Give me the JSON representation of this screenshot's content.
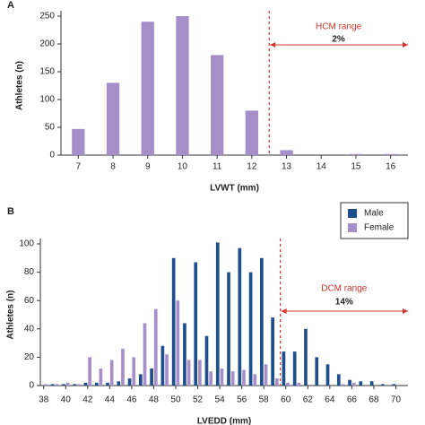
{
  "chart_data": [
    {
      "type": "bar",
      "panel": "A",
      "x_label": "LVWT (mm)",
      "y_label": "Athletes (n)",
      "x": [
        7,
        8,
        9,
        10,
        11,
        12,
        13,
        14,
        15,
        16
      ],
      "values": [
        47,
        130,
        240,
        250,
        180,
        80,
        9,
        0,
        2,
        2
      ],
      "color": "#a68fc8",
      "xlim": [
        6.5,
        16.5
      ],
      "ylim": [
        0,
        250
      ],
      "yticks": [
        0,
        50,
        100,
        150,
        200,
        250
      ],
      "reference_line": 12.5,
      "reference_color": "#d0342c",
      "annotations": [
        "HCM range",
        "2%"
      ]
    },
    {
      "type": "grouped-bar",
      "panel": "B",
      "x_label": "LVEDD (mm)",
      "y_label": "Athletes (n)",
      "x": [
        38,
        39,
        40,
        41,
        42,
        43,
        44,
        45,
        46,
        47,
        48,
        49,
        50,
        51,
        52,
        53,
        54,
        55,
        56,
        57,
        58,
        59,
        60,
        61,
        62,
        63,
        64,
        65,
        66,
        67,
        68,
        69,
        70
      ],
      "series": [
        {
          "name": "Male",
          "color": "#1f4e8c",
          "values": [
            0,
            1,
            1,
            1,
            2,
            2,
            2,
            3,
            5,
            8,
            12,
            28,
            90,
            44,
            87,
            35,
            101,
            80,
            97,
            80,
            90,
            48,
            24,
            24,
            40,
            20,
            15,
            8,
            4,
            3,
            3,
            1,
            1
          ]
        },
        {
          "name": "Female",
          "color": "#a68fc8",
          "values": [
            1,
            1,
            2,
            1,
            20,
            12,
            18,
            26,
            20,
            44,
            54,
            22,
            60,
            18,
            18,
            10,
            12,
            10,
            11,
            8,
            15,
            5,
            2,
            2,
            0,
            0,
            0,
            1,
            2,
            0,
            0,
            0,
            0
          ]
        }
      ],
      "xlim": [
        37.7,
        71.1
      ],
      "xticks": [
        38,
        40,
        42,
        44,
        46,
        48,
        50,
        52,
        54,
        56,
        58,
        60,
        62,
        64,
        66,
        68,
        70
      ],
      "ylim": [
        0,
        100
      ],
      "yticks": [
        0,
        20,
        40,
        60,
        80,
        100
      ],
      "reference_line": 59.5,
      "reference_color": "#d0342c",
      "legend": "top-right",
      "annotations": [
        "DCM range",
        "14%"
      ]
    }
  ]
}
